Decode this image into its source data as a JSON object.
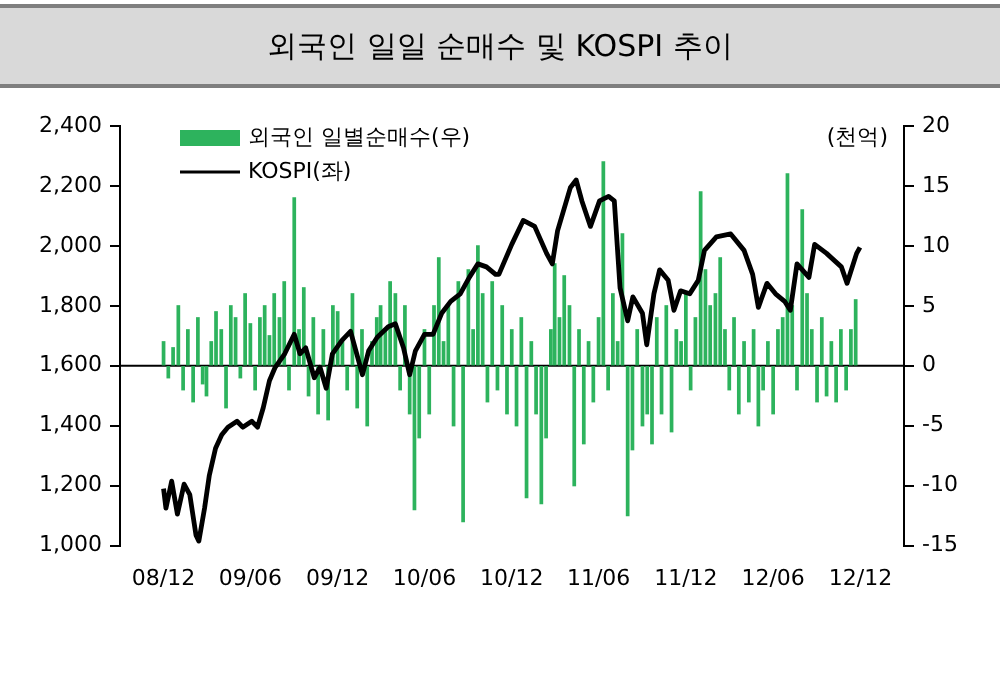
{
  "chart_data": {
    "type": "bar",
    "title": "외국인 일일 순매수 및 KOSPI 추이",
    "y2label": "(천억)",
    "xlim": [
      "2008-12-01",
      "2012-12-01"
    ],
    "xticks": [
      {
        "value": "2008-12-01",
        "label": "08/12"
      },
      {
        "value": "2009-06-01",
        "label": "09/06"
      },
      {
        "value": "2009-12-01",
        "label": "09/12"
      },
      {
        "value": "2010-06-01",
        "label": "10/06"
      },
      {
        "value": "2010-12-01",
        "label": "10/12"
      },
      {
        "value": "2011-06-01",
        "label": "11/06"
      },
      {
        "value": "2011-12-01",
        "label": "11/12"
      },
      {
        "value": "2012-06-01",
        "label": "12/06"
      },
      {
        "value": "2012-12-01",
        "label": "12/12"
      }
    ],
    "ylim": [
      1000,
      2400
    ],
    "yticks": [
      {
        "value": 1000,
        "label": "1,000"
      },
      {
        "value": 1200,
        "label": "1,200"
      },
      {
        "value": 1400,
        "label": "1,400"
      },
      {
        "value": 1600,
        "label": "1,600"
      },
      {
        "value": 1800,
        "label": "1,800"
      },
      {
        "value": 2000,
        "label": "2,000"
      },
      {
        "value": 2200,
        "label": "2,200"
      },
      {
        "value": 2400,
        "label": "2,400"
      }
    ],
    "y2lim": [
      -15,
      20
    ],
    "y2ticks": [
      -15,
      -10,
      -5,
      0,
      5,
      10,
      15,
      20
    ],
    "grid": false,
    "ref_lines": [
      {
        "axis": "y2",
        "value": 0,
        "color": "#000000"
      }
    ],
    "legend": "top left",
    "marker": "none",
    "line_style": "solid",
    "series": [
      {
        "name": "외국인 일별순매수(우)",
        "axis": "y2",
        "color": "#2db35d",
        "x": [
          "2008-12-01",
          "2008-12-11",
          "2008-12-21",
          "2009-01-01",
          "2009-01-11",
          "2009-01-21",
          "2009-02-01",
          "2009-02-11",
          "2009-02-21",
          "2009-03-01",
          "2009-03-11",
          "2009-03-21",
          "2009-04-01",
          "2009-04-11",
          "2009-04-21",
          "2009-05-01",
          "2009-05-11",
          "2009-05-21",
          "2009-06-01",
          "2009-06-11",
          "2009-06-21",
          "2009-07-01",
          "2009-07-11",
          "2009-07-21",
          "2009-08-01",
          "2009-08-11",
          "2009-08-21",
          "2009-09-01",
          "2009-09-11",
          "2009-09-21",
          "2009-10-01",
          "2009-10-11",
          "2009-10-21",
          "2009-11-01",
          "2009-11-11",
          "2009-11-21",
          "2009-12-01",
          "2009-12-11",
          "2009-12-21",
          "2010-01-01",
          "2010-01-11",
          "2010-01-21",
          "2010-02-01",
          "2010-02-11",
          "2010-02-21",
          "2010-03-01",
          "2010-03-11",
          "2010-03-21",
          "2010-04-01",
          "2010-04-11",
          "2010-04-21",
          "2010-05-01",
          "2010-05-11",
          "2010-05-21",
          "2010-06-01",
          "2010-06-11",
          "2010-06-21",
          "2010-07-01",
          "2010-07-11",
          "2010-07-21",
          "2010-08-01",
          "2010-08-11",
          "2010-08-21",
          "2010-09-01",
          "2010-09-11",
          "2010-09-21",
          "2010-10-01",
          "2010-10-11",
          "2010-10-21",
          "2010-11-01",
          "2010-11-11",
          "2010-11-21",
          "2010-12-01",
          "2010-12-11",
          "2010-12-21",
          "2011-01-01",
          "2011-01-11",
          "2011-01-21",
          "2011-02-01",
          "2011-02-11",
          "2011-02-21",
          "2011-03-01",
          "2011-03-11",
          "2011-03-21",
          "2011-04-01",
          "2011-04-11",
          "2011-04-21",
          "2011-05-01",
          "2011-05-11",
          "2011-05-21",
          "2011-06-01",
          "2011-06-11",
          "2011-06-21",
          "2011-07-01",
          "2011-07-11",
          "2011-07-21",
          "2011-08-01",
          "2011-08-11",
          "2011-08-21",
          "2011-09-01",
          "2011-09-11",
          "2011-09-21",
          "2011-10-01",
          "2011-10-11",
          "2011-10-21",
          "2011-11-01",
          "2011-11-11",
          "2011-11-21",
          "2011-12-01",
          "2011-12-11",
          "2011-12-21",
          "2012-01-01",
          "2012-01-11",
          "2012-01-21",
          "2012-02-01",
          "2012-02-11",
          "2012-02-21",
          "2012-03-01",
          "2012-03-11",
          "2012-03-21",
          "2012-04-01",
          "2012-04-11",
          "2012-04-21",
          "2012-05-01",
          "2012-05-11",
          "2012-05-21",
          "2012-06-01",
          "2012-06-11",
          "2012-06-21",
          "2012-07-01",
          "2012-07-11",
          "2012-07-21",
          "2012-08-01",
          "2012-08-11",
          "2012-08-21",
          "2012-09-01",
          "2012-09-11",
          "2012-09-21",
          "2012-10-01",
          "2012-10-11",
          "2012-10-21",
          "2012-11-01",
          "2012-11-11",
          "2012-11-21"
        ],
        "values": [
          2,
          -1,
          1.5,
          5,
          -2,
          3,
          -3,
          4,
          -1.5,
          -2.5,
          2,
          4.5,
          3,
          -3.5,
          5,
          4,
          -1,
          6,
          3.5,
          -2,
          4,
          5,
          2.5,
          6,
          4,
          7,
          -2,
          14,
          3,
          6.5,
          -2.5,
          4,
          -4,
          3,
          -4.5,
          5,
          4.5,
          2,
          -2,
          6,
          -3.5,
          3,
          -5,
          2,
          4,
          5,
          3,
          7,
          6,
          -2,
          5,
          -4,
          -12,
          -6,
          3,
          -4,
          5,
          9,
          2,
          5,
          -5,
          7,
          -13,
          8,
          3,
          10,
          6,
          -3,
          7,
          -2,
          5,
          -4,
          3,
          -5,
          4,
          -11,
          2,
          -4,
          -11.5,
          -6,
          3,
          8.5,
          4,
          7.5,
          5,
          -10,
          3,
          -6.5,
          2,
          -3,
          4,
          17,
          -2,
          6,
          2,
          11,
          -12.5,
          -7,
          3,
          -5,
          -4,
          -6.5,
          4,
          -4,
          5,
          -5.5,
          3,
          2,
          6,
          -2,
          4,
          14.5,
          8,
          5,
          6,
          9,
          3,
          -2,
          4,
          -4,
          2,
          -3,
          3,
          -5,
          -2,
          2,
          -4,
          3,
          4,
          16,
          5,
          -2,
          13,
          6,
          3,
          -3,
          4,
          -2.5,
          2,
          -3,
          3,
          -2,
          3,
          5.5
        ]
      },
      {
        "name": "KOSPI(좌)",
        "type": "line",
        "axis": "y",
        "color": "#000000",
        "x": [
          "2008-12-01",
          "2008-12-06",
          "2008-12-18",
          "2008-12-30",
          "2009-01-13",
          "2009-01-25",
          "2009-02-07",
          "2009-02-13",
          "2009-02-25",
          "2009-03-07",
          "2009-03-20",
          "2009-04-02",
          "2009-04-15",
          "2009-05-04",
          "2009-05-16",
          "2009-06-04",
          "2009-06-16",
          "2009-06-28",
          "2009-07-11",
          "2009-07-23",
          "2009-08-12",
          "2009-09-01",
          "2009-09-13",
          "2009-09-25",
          "2009-10-13",
          "2009-10-25",
          "2009-11-07",
          "2009-11-20",
          "2009-12-10",
          "2009-12-28",
          "2010-01-10",
          "2010-01-22",
          "2010-02-04",
          "2010-02-22",
          "2010-03-17",
          "2010-04-01",
          "2010-04-18",
          "2010-05-01",
          "2010-05-13",
          "2010-06-01",
          "2010-06-19",
          "2010-07-07",
          "2010-07-26",
          "2010-08-15",
          "2010-09-03",
          "2010-09-21",
          "2010-10-09",
          "2010-10-28",
          "2010-11-04",
          "2010-12-01",
          "2010-12-25",
          "2011-01-18",
          "2011-02-12",
          "2011-02-24",
          "2011-03-07",
          "2011-04-03",
          "2011-04-15",
          "2011-04-27",
          "2011-05-15",
          "2011-06-03",
          "2011-06-22",
          "2011-07-04",
          "2011-07-16",
          "2011-08-01",
          "2011-08-12",
          "2011-09-01",
          "2011-09-10",
          "2011-09-25",
          "2011-10-07",
          "2011-10-25",
          "2011-11-06",
          "2011-11-20",
          "2011-12-09",
          "2011-12-27",
          "2012-01-09",
          "2012-02-03",
          "2012-03-04",
          "2012-04-01",
          "2012-04-19",
          "2012-05-01",
          "2012-05-19",
          "2012-06-06",
          "2012-06-25",
          "2012-07-07",
          "2012-07-21",
          "2012-08-15",
          "2012-08-27",
          "2012-09-21",
          "2012-10-22",
          "2012-11-03",
          "2012-11-23",
          "2012-11-30"
        ],
        "values": [
          1190,
          1125,
          1215,
          1105,
          1205,
          1170,
          1035,
          1015,
          1125,
          1235,
          1325,
          1370,
          1395,
          1415,
          1395,
          1415,
          1395,
          1460,
          1550,
          1595,
          1640,
          1705,
          1640,
          1660,
          1560,
          1595,
          1525,
          1640,
          1685,
          1715,
          1640,
          1570,
          1650,
          1695,
          1730,
          1740,
          1660,
          1570,
          1650,
          1705,
          1705,
          1775,
          1815,
          1840,
          1895,
          1940,
          1930,
          1905,
          1905,
          2005,
          2085,
          2065,
          1975,
          1940,
          2050,
          2195,
          2220,
          2150,
          2065,
          2150,
          2165,
          2150,
          1860,
          1750,
          1830,
          1775,
          1670,
          1840,
          1920,
          1885,
          1785,
          1850,
          1840,
          1885,
          1985,
          2030,
          2040,
          1985,
          1905,
          1795,
          1875,
          1840,
          1815,
          1785,
          1940,
          1895,
          2005,
          1975,
          1930,
          1875,
          1975,
          1995
        ]
      }
    ]
  }
}
